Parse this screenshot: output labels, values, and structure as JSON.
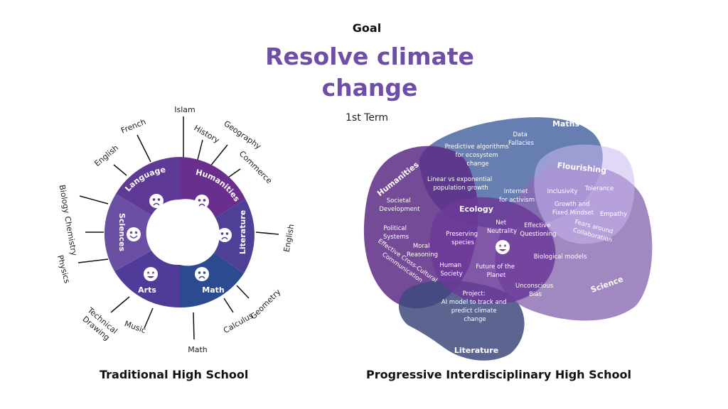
{
  "header": {
    "goal_label": "Goal",
    "goal_title_line1": "Resolve climate",
    "goal_title_line2": "change",
    "term_label": "1st Term"
  },
  "colors": {
    "title": "#6f4ea8",
    "humanities_seg": "#6a2e8c",
    "language_seg": "#5e3a96",
    "sciences_seg": "#6b4fa3",
    "literature_seg": "#4f3f96",
    "math_seg": "#2c4a8f",
    "arts_seg": "#503c98"
  },
  "traditional": {
    "caption": "Traditional High School",
    "segments": {
      "humanities": "Humanities",
      "language": "Language",
      "sciences": "Sciences",
      "arts": "Arts",
      "math": "Math",
      "literature": "Literature"
    },
    "subjects": {
      "islam": "Islam",
      "history": "History",
      "geography": "Geography",
      "commerce": "Commerce",
      "french": "French",
      "english_top": "English",
      "biology": "Biology",
      "chemistry": "Chemistry",
      "physics": "Physics",
      "english_right": "English",
      "geometry": "Geometry",
      "calculus": "Calculus",
      "math": "Math",
      "music": "Music",
      "technical_drawing_1": "Technical",
      "technical_drawing_2": "Drawing"
    }
  },
  "progressive": {
    "caption": "Progressive Interdisciplinary High School",
    "blobs": {
      "maths": "Maths",
      "flourishing": "Flourishing",
      "humanities": "Humanities",
      "ecology": "Ecology",
      "science": "Science",
      "literature": "Literature"
    },
    "items": {
      "data_fallacies_1": "Data",
      "data_fallacies_2": "Fallacies",
      "predictive_1": "Predictive algorithms",
      "predictive_2": "for ecosystem",
      "predictive_3": "change",
      "linear_1": "Linear vs exponential",
      "linear_2": "population growth",
      "internet_1": "Internet",
      "internet_2": "for activism",
      "inclusivity": "Inclusivity",
      "tolerance": "Tolerance",
      "growth_1": "Growth and",
      "growth_2": "Fixed Mindset",
      "empathy": "Empathy",
      "fears_1": "Fears around",
      "fears_2": "Collaboration",
      "societal_1": "Societal",
      "societal_2": "Development",
      "political_1": "Political",
      "political_2": "Systems",
      "moral_1": "Moral",
      "moral_2": "Reasoning",
      "effective_cc": "Effective Cross-Cultural",
      "communication": "Communication",
      "net_1": "Net",
      "net_2": "Neutrality",
      "effq_1": "Effective",
      "effq_2": "Questioning",
      "preserving_1": "Preserving",
      "preserving_2": "species",
      "human_1": "Human",
      "human_2": "Society",
      "future_1": "Future of the",
      "future_2": "Planet",
      "bio_models": "Biological models",
      "unconscious_1": "Unconscious",
      "unconscious_2": "Bias",
      "project_1": "Project:",
      "project_2": "AI model to track and",
      "project_3": "predict climate",
      "project_4": "change"
    }
  }
}
